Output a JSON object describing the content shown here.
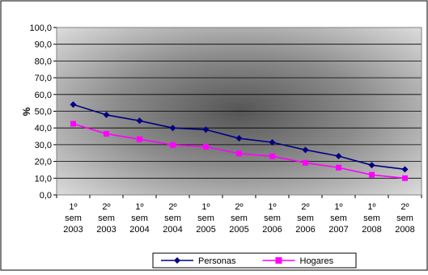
{
  "chart_data": {
    "type": "line",
    "title": "",
    "xlabel": "",
    "ylabel": "%",
    "ylim": [
      0,
      100
    ],
    "yticks": [
      "0,0",
      "10,0",
      "20,0",
      "30,0",
      "40,0",
      "50,0",
      "60,0",
      "70,0",
      "80,0",
      "90,0",
      "100,0"
    ],
    "categories": [
      [
        "1º",
        "sem",
        "2003"
      ],
      [
        "2º",
        "sem",
        "2003"
      ],
      [
        "1º",
        "sem",
        "2004"
      ],
      [
        "2º",
        "sem",
        "2004"
      ],
      [
        "1º",
        "sem",
        "2005"
      ],
      [
        "2º",
        "sem",
        "2005"
      ],
      [
        "1º",
        "sem",
        "2006"
      ],
      [
        "2º",
        "sem",
        "2006"
      ],
      [
        "1º",
        "sem",
        "2007"
      ],
      [
        "1º",
        "sem",
        "2008"
      ],
      [
        "2º",
        "sem",
        "2008"
      ]
    ],
    "series": [
      {
        "name": "Personas",
        "color": "#000080",
        "marker": "diamond",
        "values": [
          54.0,
          47.8,
          44.3,
          40.0,
          39.0,
          33.8,
          31.4,
          26.9,
          23.2,
          17.8,
          15.3
        ]
      },
      {
        "name": "Hogares",
        "color": "#ff00ff",
        "marker": "square",
        "values": [
          42.5,
          36.5,
          33.3,
          29.8,
          28.8,
          24.7,
          23.1,
          19.2,
          16.3,
          12.0,
          10.0
        ]
      }
    ],
    "grid": true,
    "legend": "bottom"
  }
}
